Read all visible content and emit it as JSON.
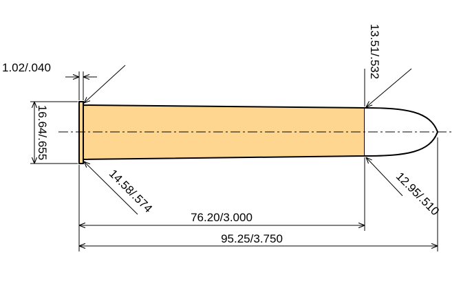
{
  "dimensions": {
    "rim_thickness": "1.02/.040",
    "rim_diameter": "16.64/.655",
    "base_diameter": "14.58/.574",
    "case_length": "76.20/3.000",
    "overall_length": "95.25/3.750",
    "neck_diameter": "13.51/.532",
    "bullet_diameter": "12.95/.510"
  }
}
